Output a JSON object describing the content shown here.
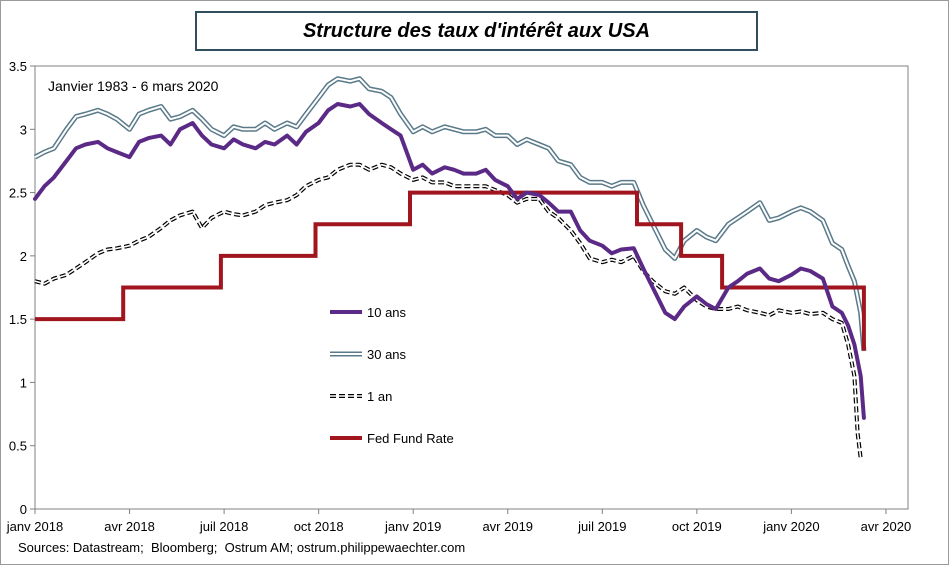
{
  "title": "Structure des taux d'intérêt aux USA",
  "source": "Sources: Datastream;  Bloomberg;  Ostrum AM; ostrum.philippewaechter.com",
  "chart_data": {
    "type": "line",
    "period_label": "Janvier 1983 - 6 mars 2020",
    "ylim": [
      0,
      3.5
    ],
    "yticks": [
      "0",
      "0.5",
      "1",
      "1.5",
      "2",
      "2.5",
      "3",
      "3.5"
    ],
    "xticks": [
      {
        "label": "janv 2018",
        "month": 0
      },
      {
        "label": "avr 2018",
        "month": 3
      },
      {
        "label": "juil 2018",
        "month": 6
      },
      {
        "label": "oct 2018",
        "month": 9
      },
      {
        "label": "janv 2019",
        "month": 12
      },
      {
        "label": "avr 2019",
        "month": 15
      },
      {
        "label": "juil 2019",
        "month": 18
      },
      {
        "label": "oct 2019",
        "month": 21
      },
      {
        "label": "janv 2020",
        "month": 24
      },
      {
        "label": "avr 2020",
        "month": 27
      }
    ],
    "x_unit": "months since janv 2018",
    "series": [
      {
        "name": "10 ans",
        "color": "#5b2a86",
        "style": "thick",
        "points": [
          [
            0,
            2.45
          ],
          [
            0.3,
            2.55
          ],
          [
            0.6,
            2.62
          ],
          [
            1,
            2.75
          ],
          [
            1.3,
            2.85
          ],
          [
            1.6,
            2.88
          ],
          [
            2,
            2.9
          ],
          [
            2.3,
            2.85
          ],
          [
            2.6,
            2.82
          ],
          [
            3,
            2.78
          ],
          [
            3.3,
            2.9
          ],
          [
            3.6,
            2.93
          ],
          [
            4,
            2.95
          ],
          [
            4.3,
            2.88
          ],
          [
            4.6,
            3.0
          ],
          [
            5,
            3.05
          ],
          [
            5.3,
            2.95
          ],
          [
            5.6,
            2.88
          ],
          [
            6,
            2.85
          ],
          [
            6.3,
            2.92
          ],
          [
            6.6,
            2.88
          ],
          [
            7,
            2.85
          ],
          [
            7.3,
            2.9
          ],
          [
            7.6,
            2.88
          ],
          [
            8,
            2.95
          ],
          [
            8.3,
            2.88
          ],
          [
            8.6,
            2.98
          ],
          [
            9,
            3.05
          ],
          [
            9.3,
            3.15
          ],
          [
            9.6,
            3.2
          ],
          [
            10,
            3.18
          ],
          [
            10.3,
            3.2
          ],
          [
            10.6,
            3.12
          ],
          [
            11,
            3.05
          ],
          [
            11.3,
            3.0
          ],
          [
            11.6,
            2.95
          ],
          [
            12,
            2.68
          ],
          [
            12.3,
            2.72
          ],
          [
            12.6,
            2.65
          ],
          [
            13,
            2.7
          ],
          [
            13.3,
            2.68
          ],
          [
            13.6,
            2.65
          ],
          [
            14,
            2.65
          ],
          [
            14.3,
            2.68
          ],
          [
            14.6,
            2.6
          ],
          [
            15,
            2.55
          ],
          [
            15.3,
            2.45
          ],
          [
            15.6,
            2.5
          ],
          [
            16,
            2.48
          ],
          [
            16.3,
            2.42
          ],
          [
            16.6,
            2.35
          ],
          [
            17,
            2.35
          ],
          [
            17.3,
            2.2
          ],
          [
            17.6,
            2.12
          ],
          [
            18,
            2.08
          ],
          [
            18.3,
            2.02
          ],
          [
            18.6,
            2.05
          ],
          [
            19,
            2.06
          ],
          [
            19.3,
            1.9
          ],
          [
            19.6,
            1.75
          ],
          [
            20,
            1.55
          ],
          [
            20.3,
            1.5
          ],
          [
            20.6,
            1.6
          ],
          [
            21,
            1.68
          ],
          [
            21.3,
            1.62
          ],
          [
            21.6,
            1.58
          ],
          [
            22,
            1.75
          ],
          [
            22.3,
            1.8
          ],
          [
            22.6,
            1.86
          ],
          [
            23,
            1.9
          ],
          [
            23.3,
            1.82
          ],
          [
            23.6,
            1.8
          ],
          [
            24,
            1.85
          ],
          [
            24.3,
            1.9
          ],
          [
            24.6,
            1.88
          ],
          [
            25,
            1.82
          ],
          [
            25.3,
            1.6
          ],
          [
            25.6,
            1.55
          ],
          [
            25.8,
            1.45
          ],
          [
            26,
            1.3
          ],
          [
            26.2,
            1.05
          ],
          [
            26.3,
            0.72
          ]
        ]
      },
      {
        "name": "30 ans",
        "color": "#5a7a8a",
        "style": "double",
        "points": [
          [
            0,
            2.78
          ],
          [
            0.3,
            2.82
          ],
          [
            0.6,
            2.85
          ],
          [
            1,
            3.0
          ],
          [
            1.3,
            3.1
          ],
          [
            1.6,
            3.12
          ],
          [
            2,
            3.15
          ],
          [
            2.3,
            3.12
          ],
          [
            2.6,
            3.08
          ],
          [
            3,
            3.0
          ],
          [
            3.3,
            3.12
          ],
          [
            3.6,
            3.15
          ],
          [
            4,
            3.18
          ],
          [
            4.3,
            3.08
          ],
          [
            4.6,
            3.1
          ],
          [
            5,
            3.15
          ],
          [
            5.3,
            3.08
          ],
          [
            5.6,
            3.0
          ],
          [
            6,
            2.95
          ],
          [
            6.3,
            3.02
          ],
          [
            6.6,
            3.0
          ],
          [
            7,
            3.0
          ],
          [
            7.3,
            3.05
          ],
          [
            7.6,
            3.0
          ],
          [
            8,
            3.05
          ],
          [
            8.3,
            3.02
          ],
          [
            8.6,
            3.12
          ],
          [
            9,
            3.25
          ],
          [
            9.3,
            3.35
          ],
          [
            9.6,
            3.4
          ],
          [
            10,
            3.38
          ],
          [
            10.3,
            3.4
          ],
          [
            10.6,
            3.32
          ],
          [
            11,
            3.3
          ],
          [
            11.3,
            3.25
          ],
          [
            11.6,
            3.12
          ],
          [
            12,
            2.98
          ],
          [
            12.3,
            3.02
          ],
          [
            12.6,
            2.98
          ],
          [
            13,
            3.02
          ],
          [
            13.3,
            3.0
          ],
          [
            13.6,
            2.98
          ],
          [
            14,
            2.98
          ],
          [
            14.3,
            3.0
          ],
          [
            14.6,
            2.95
          ],
          [
            15,
            2.95
          ],
          [
            15.3,
            2.88
          ],
          [
            15.6,
            2.92
          ],
          [
            16,
            2.88
          ],
          [
            16.3,
            2.85
          ],
          [
            16.6,
            2.75
          ],
          [
            17,
            2.72
          ],
          [
            17.3,
            2.62
          ],
          [
            17.6,
            2.58
          ],
          [
            18,
            2.58
          ],
          [
            18.3,
            2.55
          ],
          [
            18.6,
            2.58
          ],
          [
            19,
            2.58
          ],
          [
            19.3,
            2.4
          ],
          [
            19.6,
            2.25
          ],
          [
            20,
            2.05
          ],
          [
            20.3,
            1.98
          ],
          [
            20.6,
            2.12
          ],
          [
            21,
            2.2
          ],
          [
            21.3,
            2.15
          ],
          [
            21.6,
            2.12
          ],
          [
            22,
            2.25
          ],
          [
            22.3,
            2.3
          ],
          [
            22.6,
            2.35
          ],
          [
            23,
            2.42
          ],
          [
            23.3,
            2.28
          ],
          [
            23.6,
            2.3
          ],
          [
            24,
            2.35
          ],
          [
            24.3,
            2.38
          ],
          [
            24.6,
            2.35
          ],
          [
            25,
            2.28
          ],
          [
            25.3,
            2.1
          ],
          [
            25.6,
            2.05
          ],
          [
            25.8,
            1.92
          ],
          [
            26,
            1.8
          ],
          [
            26.2,
            1.55
          ],
          [
            26.3,
            1.25
          ]
        ]
      },
      {
        "name": "1 an",
        "color": "#000000",
        "style": "dashed",
        "points": [
          [
            0,
            1.8
          ],
          [
            0.3,
            1.78
          ],
          [
            0.6,
            1.82
          ],
          [
            1,
            1.85
          ],
          [
            1.3,
            1.9
          ],
          [
            1.6,
            1.95
          ],
          [
            2,
            2.02
          ],
          [
            2.3,
            2.05
          ],
          [
            2.6,
            2.06
          ],
          [
            3,
            2.08
          ],
          [
            3.3,
            2.12
          ],
          [
            3.6,
            2.15
          ],
          [
            4,
            2.22
          ],
          [
            4.3,
            2.28
          ],
          [
            4.6,
            2.32
          ],
          [
            5,
            2.35
          ],
          [
            5.3,
            2.22
          ],
          [
            5.6,
            2.3
          ],
          [
            6,
            2.35
          ],
          [
            6.3,
            2.33
          ],
          [
            6.6,
            2.32
          ],
          [
            7,
            2.35
          ],
          [
            7.3,
            2.4
          ],
          [
            7.6,
            2.42
          ],
          [
            8,
            2.44
          ],
          [
            8.3,
            2.48
          ],
          [
            8.6,
            2.55
          ],
          [
            9,
            2.6
          ],
          [
            9.3,
            2.62
          ],
          [
            9.6,
            2.68
          ],
          [
            10,
            2.72
          ],
          [
            10.3,
            2.72
          ],
          [
            10.6,
            2.68
          ],
          [
            11,
            2.72
          ],
          [
            11.3,
            2.7
          ],
          [
            11.6,
            2.65
          ],
          [
            12,
            2.6
          ],
          [
            12.3,
            2.62
          ],
          [
            12.6,
            2.58
          ],
          [
            13,
            2.58
          ],
          [
            13.3,
            2.55
          ],
          [
            13.6,
            2.55
          ],
          [
            14,
            2.55
          ],
          [
            14.3,
            2.55
          ],
          [
            14.6,
            2.52
          ],
          [
            15,
            2.48
          ],
          [
            15.3,
            2.42
          ],
          [
            15.6,
            2.45
          ],
          [
            16,
            2.45
          ],
          [
            16.3,
            2.35
          ],
          [
            16.6,
            2.3
          ],
          [
            17,
            2.2
          ],
          [
            17.3,
            2.1
          ],
          [
            17.6,
            1.98
          ],
          [
            18,
            1.95
          ],
          [
            18.3,
            1.97
          ],
          [
            18.6,
            1.95
          ],
          [
            19,
            2.0
          ],
          [
            19.3,
            1.88
          ],
          [
            19.6,
            1.8
          ],
          [
            20,
            1.72
          ],
          [
            20.3,
            1.7
          ],
          [
            20.6,
            1.75
          ],
          [
            21,
            1.65
          ],
          [
            21.3,
            1.6
          ],
          [
            21.6,
            1.58
          ],
          [
            22,
            1.58
          ],
          [
            22.3,
            1.6
          ],
          [
            22.6,
            1.57
          ],
          [
            23,
            1.55
          ],
          [
            23.3,
            1.53
          ],
          [
            23.6,
            1.57
          ],
          [
            24,
            1.55
          ],
          [
            24.3,
            1.56
          ],
          [
            24.6,
            1.54
          ],
          [
            25,
            1.55
          ],
          [
            25.3,
            1.5
          ],
          [
            25.6,
            1.47
          ],
          [
            25.8,
            1.3
          ],
          [
            26,
            1.05
          ],
          [
            26.1,
            0.6
          ],
          [
            26.2,
            0.4
          ]
        ]
      },
      {
        "name": "Fed Fund Rate",
        "color": "#a0151e",
        "style": "step",
        "points": [
          [
            0,
            1.5
          ],
          [
            2.8,
            1.5
          ],
          [
            2.8,
            1.75
          ],
          [
            5.9,
            1.75
          ],
          [
            5.9,
            2.0
          ],
          [
            8.9,
            2.0
          ],
          [
            8.9,
            2.25
          ],
          [
            11.9,
            2.25
          ],
          [
            11.9,
            2.5
          ],
          [
            19.1,
            2.5
          ],
          [
            19.1,
            2.25
          ],
          [
            20.5,
            2.25
          ],
          [
            20.5,
            2.0
          ],
          [
            21.8,
            2.0
          ],
          [
            21.8,
            1.75
          ],
          [
            26.3,
            1.75
          ],
          [
            26.3,
            1.25
          ]
        ]
      }
    ]
  }
}
